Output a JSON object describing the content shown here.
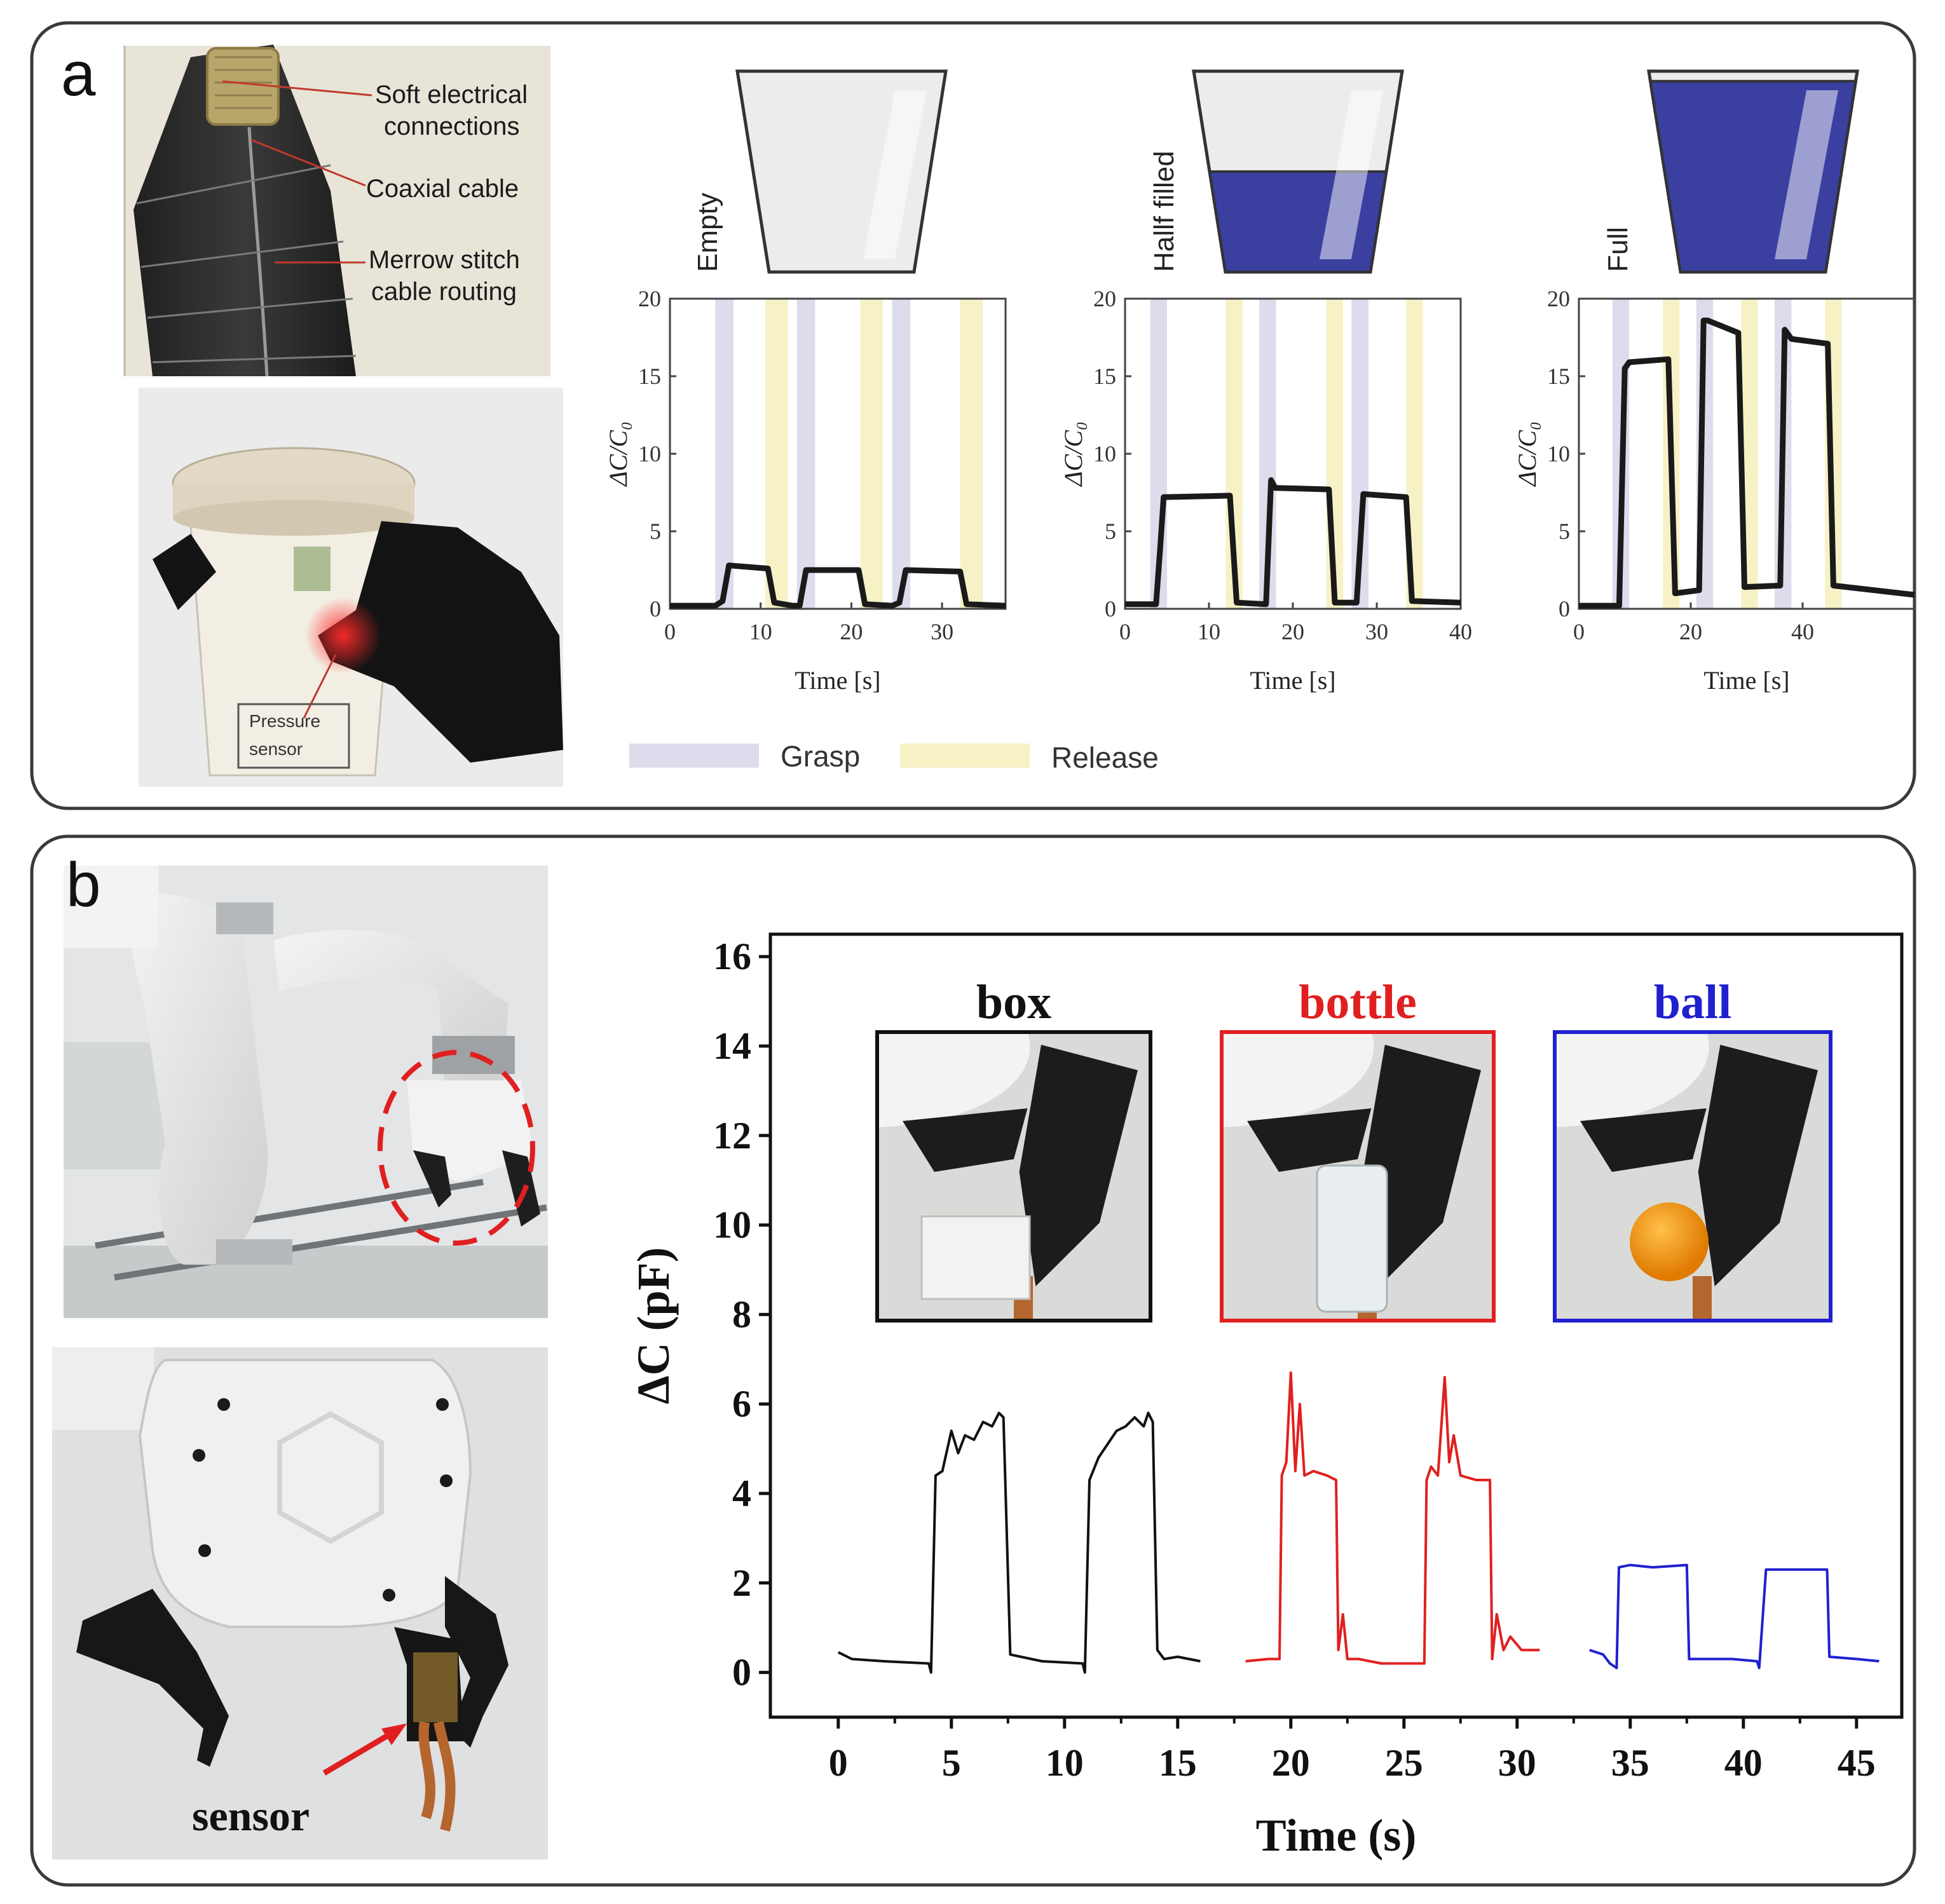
{
  "panel_a": {
    "label": "a",
    "annotations": {
      "soft_connections": [
        "Soft electrical",
        "connections"
      ],
      "coaxial": "Coaxial cable",
      "merrow": [
        "Merrow stitch",
        "cable routing"
      ],
      "pressure_sensor": [
        "Pressure",
        "sensor"
      ]
    },
    "legend": {
      "grasp": "Grasp",
      "release": "Release"
    },
    "colors": {
      "grasp": "#dcdcec",
      "release": "#f6f2c6",
      "water": "#3a3fa0",
      "cup": "#ececec",
      "line": "#1a1a1a"
    }
  },
  "panel_b": {
    "label": "b",
    "sensor_label": "sensor",
    "inset_titles": [
      {
        "text": "box",
        "color": "#111111"
      },
      {
        "text": "bottle",
        "color": "#e02020"
      },
      {
        "text": "ball",
        "color": "#2020d0"
      }
    ]
  },
  "chart_data": [
    {
      "type": "line",
      "cup_label": "Empty",
      "xlabel": "Time [s]",
      "ylabel": "ΔC/C₀",
      "xlim": [
        0,
        37
      ],
      "ylim": [
        0,
        20
      ],
      "xticks": [
        0,
        10,
        20,
        30
      ],
      "yticks": [
        0,
        5,
        10,
        15,
        20
      ],
      "fill_fraction": 0,
      "grasp_bands": [
        [
          5,
          7
        ],
        [
          14,
          16
        ],
        [
          24.5,
          26.5
        ]
      ],
      "release_bands": [
        [
          10.5,
          13
        ],
        [
          21,
          23.5
        ],
        [
          32,
          34.5
        ]
      ],
      "series": [
        {
          "x": [
            0,
            5,
            5.8,
            6.5,
            10.8,
            11.5,
            13.5,
            14.3,
            15,
            20.8,
            21.5,
            24.5,
            25.3,
            26,
            32,
            32.7,
            37
          ],
          "y": [
            0.2,
            0.2,
            0.5,
            2.8,
            2.6,
            0.4,
            0.2,
            0.2,
            2.5,
            2.5,
            0.3,
            0.2,
            0.4,
            2.5,
            2.4,
            0.3,
            0.2
          ]
        }
      ]
    },
    {
      "type": "line",
      "cup_label": "Hallf filled",
      "xlabel": "Time [s]",
      "ylabel": "ΔC/C₀",
      "xlim": [
        0,
        40
      ],
      "ylim": [
        0,
        20
      ],
      "xticks": [
        0,
        10,
        20,
        30,
        40
      ],
      "yticks": [
        0,
        5,
        10,
        15,
        20
      ],
      "fill_fraction": 0.5,
      "grasp_bands": [
        [
          3,
          5
        ],
        [
          16,
          18
        ],
        [
          27,
          29
        ]
      ],
      "release_bands": [
        [
          12,
          14
        ],
        [
          24,
          26
        ],
        [
          33.5,
          35.5
        ]
      ],
      "series": [
        {
          "x": [
            0,
            3.7,
            4.2,
            4.6,
            12.5,
            13.3,
            16.8,
            17.4,
            17.9,
            24.3,
            25,
            27.6,
            28.4,
            33.5,
            34.2,
            40
          ],
          "y": [
            0.3,
            0.3,
            4,
            7.2,
            7.3,
            0.4,
            0.3,
            8.3,
            7.8,
            7.7,
            0.4,
            0.4,
            7.4,
            7.2,
            0.5,
            0.4
          ]
        }
      ]
    },
    {
      "type": "line",
      "cup_label": "Full",
      "xlabel": "Time [s]",
      "ylabel": "ΔC/C₀",
      "xlim": [
        0,
        60
      ],
      "ylim": [
        0,
        20
      ],
      "xticks": [
        0,
        20,
        40
      ],
      "yticks": [
        0,
        5,
        10,
        15,
        20
      ],
      "fill_fraction": 0.95,
      "grasp_bands": [
        [
          6,
          9
        ],
        [
          21,
          24
        ],
        [
          35,
          38
        ]
      ],
      "release_bands": [
        [
          15,
          18
        ],
        [
          29,
          32
        ],
        [
          44,
          47
        ]
      ],
      "series": [
        {
          "x": [
            0,
            7.2,
            8.2,
            9,
            16,
            17.2,
            21.5,
            22.3,
            23,
            28.5,
            29.6,
            36,
            36.8,
            38,
            44.5,
            45.5,
            60
          ],
          "y": [
            0.2,
            0.2,
            15.5,
            15.9,
            16.1,
            1,
            1.2,
            18.6,
            18.6,
            17.8,
            1.4,
            1.5,
            18,
            17.4,
            17.1,
            1.5,
            0.9
          ]
        }
      ]
    },
    {
      "type": "line",
      "xlabel": "Time (s)",
      "ylabel": "ΔC (pF)",
      "xlim": [
        -3,
        47
      ],
      "ylim": [
        -1,
        16.5
      ],
      "xticks": [
        0,
        5,
        10,
        15,
        20,
        25,
        30,
        35,
        40,
        45
      ],
      "yticks": [
        0,
        2,
        4,
        6,
        8,
        10,
        12,
        14,
        16
      ],
      "series": [
        {
          "name": "box",
          "color": "#111111",
          "x": [
            0,
            0.6,
            2,
            4,
            4.1,
            4.3,
            4.6,
            5,
            5.3,
            5.6,
            6,
            6.4,
            6.8,
            7.1,
            7.3,
            7.6,
            9,
            10.8,
            10.9,
            11.1,
            11.5,
            11.9,
            12.3,
            12.7,
            13.1,
            13.5,
            13.7,
            13.9,
            14.1,
            14.4,
            15,
            16
          ],
          "y": [
            0.45,
            0.3,
            0.25,
            0.2,
            0,
            4.4,
            4.5,
            5.4,
            4.9,
            5.3,
            5.2,
            5.6,
            5.5,
            5.8,
            5.7,
            0.4,
            0.25,
            0.2,
            0,
            4.3,
            4.8,
            5.1,
            5.4,
            5.5,
            5.7,
            5.5,
            5.8,
            5.6,
            0.5,
            0.3,
            0.35,
            0.25
          ]
        },
        {
          "name": "bottle",
          "color": "#e02020",
          "x": [
            18,
            19,
            19.5,
            19.6,
            19.8,
            20,
            20.2,
            20.4,
            20.6,
            21,
            21.6,
            22,
            22.1,
            22.3,
            22.5,
            23,
            24,
            25.9,
            26,
            26.2,
            26.5,
            26.8,
            27,
            27.2,
            27.5,
            28.2,
            28.8,
            28.9,
            29.1,
            29.4,
            29.7,
            30.2,
            31
          ],
          "y": [
            0.25,
            0.3,
            0.3,
            4.4,
            4.7,
            6.7,
            4.5,
            6,
            4.4,
            4.5,
            4.4,
            4.3,
            0.5,
            1.3,
            0.3,
            0.3,
            0.2,
            0.2,
            4.3,
            4.6,
            4.4,
            6.6,
            4.7,
            5.3,
            4.4,
            4.3,
            4.3,
            0.3,
            1.3,
            0.5,
            0.8,
            0.5,
            0.5
          ]
        },
        {
          "name": "ball",
          "color": "#2020d0",
          "x": [
            33.2,
            33.8,
            34.1,
            34.4,
            34.5,
            35,
            36,
            37.5,
            37.6,
            38.5,
            39.5,
            40.6,
            40.7,
            41,
            42.5,
            43.7,
            43.8,
            45,
            46
          ],
          "y": [
            0.5,
            0.4,
            0.2,
            0.1,
            2.35,
            2.4,
            2.35,
            2.4,
            0.3,
            0.3,
            0.3,
            0.25,
            0.1,
            2.3,
            2.3,
            2.3,
            0.35,
            0.3,
            0.25
          ]
        }
      ]
    }
  ]
}
